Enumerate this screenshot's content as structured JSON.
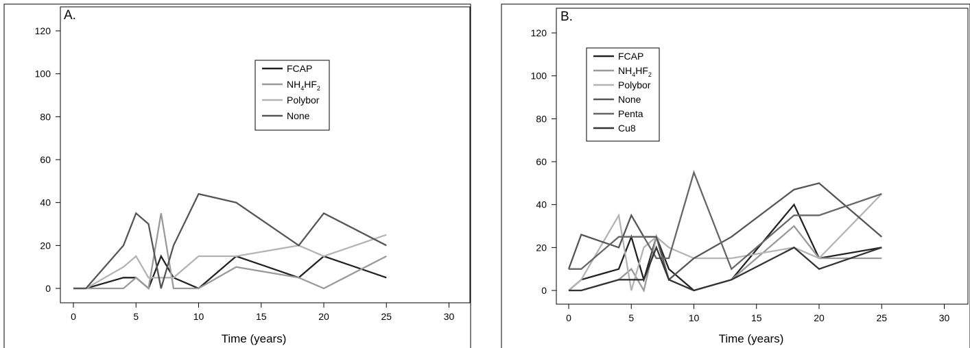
{
  "chart_data": [
    {
      "type": "line",
      "title": "A.",
      "xlabel": "Time (years)",
      "ylabel": "",
      "xlim": [
        -1,
        30
      ],
      "ylim": [
        -5,
        120
      ],
      "xticks": [
        0,
        5,
        10,
        15,
        20,
        25,
        30
      ],
      "yticks": [
        0,
        20,
        40,
        60,
        80,
        100,
        120
      ],
      "grid": false,
      "legend_position": "top-right",
      "series": [
        {
          "name": "FCAP",
          "color": "#222222",
          "points": [
            [
              0,
              0
            ],
            [
              1,
              0
            ],
            [
              4,
              5
            ],
            [
              5,
              5
            ],
            [
              6,
              0
            ],
            [
              7,
              15
            ],
            [
              8,
              5
            ],
            [
              10,
              0
            ],
            [
              13,
              15
            ],
            [
              18,
              5
            ],
            [
              20,
              15
            ],
            [
              25,
              5
            ]
          ]
        },
        {
          "name": "NH4HF2",
          "legend_main": "NH",
          "legend_sub1": "4",
          "legend_mid": "HF",
          "legend_sub2": "2",
          "color": "#999999",
          "points": [
            [
              0,
              0
            ],
            [
              1,
              0
            ],
            [
              4,
              0
            ],
            [
              5,
              5
            ],
            [
              6,
              0
            ],
            [
              7,
              35
            ],
            [
              8,
              0
            ],
            [
              10,
              0
            ],
            [
              13,
              10
            ],
            [
              18,
              5
            ],
            [
              20,
              0
            ],
            [
              25,
              15
            ]
          ]
        },
        {
          "name": "Polybor",
          "color": "#b3b3b3",
          "points": [
            [
              0,
              0
            ],
            [
              1,
              0
            ],
            [
              4,
              10
            ],
            [
              5,
              15
            ],
            [
              6,
              5
            ],
            [
              7,
              5
            ],
            [
              8,
              5
            ],
            [
              10,
              15
            ],
            [
              13,
              15
            ],
            [
              18,
              20
            ],
            [
              20,
              15
            ],
            [
              25,
              25
            ]
          ]
        },
        {
          "name": "None",
          "color": "#555555",
          "points": [
            [
              0,
              0
            ],
            [
              1,
              0
            ],
            [
              4,
              20
            ],
            [
              5,
              35
            ],
            [
              6,
              30
            ],
            [
              7,
              0
            ],
            [
              8,
              20
            ],
            [
              10,
              44
            ],
            [
              13,
              40
            ],
            [
              18,
              20
            ],
            [
              20,
              35
            ],
            [
              25,
              20
            ]
          ]
        }
      ]
    },
    {
      "type": "line",
      "title": "B.",
      "xlabel": "Time (years)",
      "ylabel": "",
      "xlim": [
        -1,
        30
      ],
      "ylim": [
        -5,
        120
      ],
      "xticks": [
        0,
        5,
        10,
        15,
        20,
        25,
        30
      ],
      "yticks": [
        0,
        20,
        40,
        60,
        80,
        100,
        120
      ],
      "grid": false,
      "legend_position": "top-left",
      "series": [
        {
          "name": "FCAP",
          "color": "#222222",
          "points": [
            [
              0,
              0
            ],
            [
              1,
              5
            ],
            [
              4,
              10
            ],
            [
              5,
              25
            ],
            [
              6,
              5
            ],
            [
              7,
              25
            ],
            [
              8,
              10
            ],
            [
              10,
              0
            ],
            [
              13,
              5
            ],
            [
              18,
              40
            ],
            [
              20,
              15
            ],
            [
              25,
              20
            ]
          ]
        },
        {
          "name": "NH4HF2",
          "legend_main": "NH",
          "legend_sub1": "4",
          "legend_mid": "HF",
          "legend_sub2": "2",
          "color": "#999999",
          "points": [
            [
              0,
              0
            ],
            [
              1,
              0
            ],
            [
              4,
              5
            ],
            [
              5,
              10
            ],
            [
              6,
              0
            ],
            [
              7,
              25
            ],
            [
              8,
              5
            ],
            [
              10,
              0
            ],
            [
              13,
              5
            ],
            [
              18,
              30
            ],
            [
              20,
              15
            ],
            [
              25,
              15
            ]
          ]
        },
        {
          "name": "Polybor",
          "color": "#b3b3b3",
          "points": [
            [
              0,
              0
            ],
            [
              1,
              5
            ],
            [
              4,
              35
            ],
            [
              5,
              0
            ],
            [
              6,
              20
            ],
            [
              7,
              25
            ],
            [
              8,
              20
            ],
            [
              10,
              15
            ],
            [
              13,
              15
            ],
            [
              18,
              20
            ],
            [
              20,
              15
            ],
            [
              25,
              45
            ]
          ]
        },
        {
          "name": "None",
          "color": "#555555",
          "points": [
            [
              0,
              10
            ],
            [
              1,
              26
            ],
            [
              4,
              20
            ],
            [
              5,
              35
            ],
            [
              6,
              25
            ],
            [
              7,
              25
            ],
            [
              8,
              5
            ],
            [
              10,
              15
            ],
            [
              13,
              25
            ],
            [
              18,
              47
            ],
            [
              20,
              50
            ],
            [
              25,
              25
            ]
          ]
        },
        {
          "name": "Penta",
          "color": "#666666",
          "points": [
            [
              0,
              10
            ],
            [
              1,
              10
            ],
            [
              4,
              25
            ],
            [
              5,
              25
            ],
            [
              6,
              25
            ],
            [
              7,
              15
            ],
            [
              8,
              15
            ],
            [
              10,
              55
            ],
            [
              13,
              10
            ],
            [
              18,
              35
            ],
            [
              20,
              35
            ],
            [
              25,
              45
            ]
          ]
        },
        {
          "name": "Cu8",
          "color": "#333333",
          "points": [
            [
              0,
              0
            ],
            [
              1,
              0
            ],
            [
              4,
              5
            ],
            [
              5,
              5
            ],
            [
              6,
              5
            ],
            [
              7,
              20
            ],
            [
              8,
              5
            ],
            [
              10,
              0
            ],
            [
              13,
              5
            ],
            [
              18,
              20
            ],
            [
              20,
              10
            ],
            [
              25,
              20
            ]
          ]
        }
      ]
    }
  ]
}
